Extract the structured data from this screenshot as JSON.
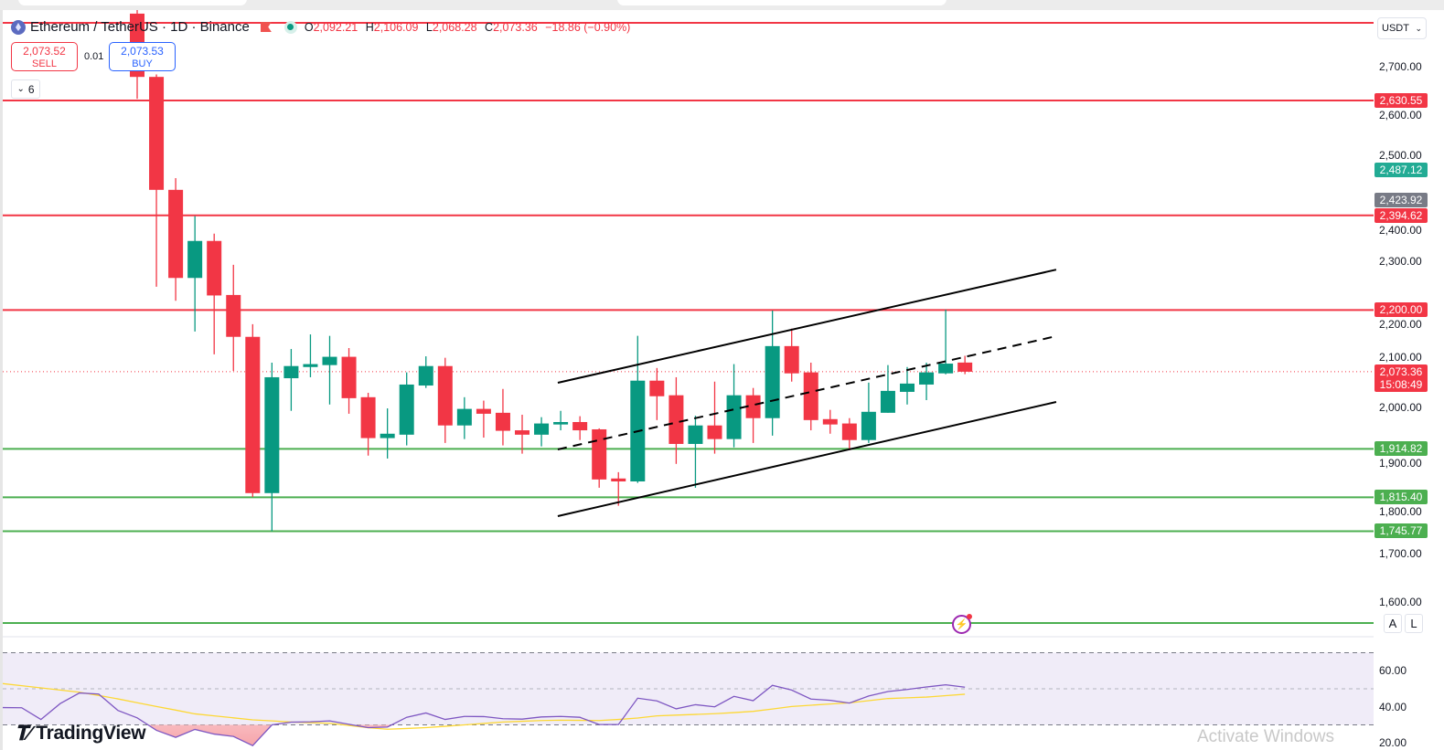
{
  "header": {
    "symbol": "Ethereum / TetherUS · 1D · Binance",
    "o_label": "O",
    "o": "2,092.21",
    "h_label": "H",
    "h": "2,106.09",
    "l_label": "L",
    "l": "2,068.28",
    "c_label": "C",
    "c": "2,073.36",
    "change": "−18.86 (−0.90%)"
  },
  "trade": {
    "sell_price": "2,073.52",
    "sell_label": "SELL",
    "spread": "0.01",
    "buy_price": "2,073.53",
    "buy_label": "BUY"
  },
  "indicators_toggle": {
    "count": "6"
  },
  "currency": "USDT",
  "scale_buttons": {
    "auto": "A",
    "log": "L"
  },
  "logo": "TradingView",
  "watermark": "Activate Windows",
  "colors": {
    "up": "#089981",
    "down": "#f23645",
    "support": "#4caf50",
    "resistance": "#f23645",
    "rsi": "#7e57c2",
    "rsi_ma": "#fdd835",
    "rsi_band": "#f0ecf8"
  },
  "chart_data": {
    "type": "candlestick",
    "interval": "1D",
    "candles": [
      {
        "o": 2809,
        "h": 2827,
        "l": 2634,
        "c": 2679
      },
      {
        "o": 2679,
        "h": 2684,
        "l": 2248,
        "c": 2447
      },
      {
        "o": 2447,
        "h": 2471,
        "l": 2219,
        "c": 2266
      },
      {
        "o": 2266,
        "h": 2393,
        "l": 2156,
        "c": 2342
      },
      {
        "o": 2342,
        "h": 2357,
        "l": 2109,
        "c": 2230
      },
      {
        "o": 2231,
        "h": 2293,
        "l": 2075,
        "c": 2145
      },
      {
        "o": 2145,
        "h": 2171,
        "l": 1816,
        "c": 1824
      },
      {
        "o": 1824,
        "h": 2092,
        "l": 1745.77,
        "c": 2062
      },
      {
        "o": 2060,
        "h": 2120,
        "l": 1993,
        "c": 2085
      },
      {
        "o": 2083,
        "h": 2150,
        "l": 2062,
        "c": 2089
      },
      {
        "o": 2087,
        "h": 2147,
        "l": 2006,
        "c": 2104
      },
      {
        "o": 2104,
        "h": 2122,
        "l": 1987,
        "c": 2019
      },
      {
        "o": 2021,
        "h": 2030,
        "l": 1901,
        "c": 1937
      },
      {
        "o": 1937,
        "h": 1998,
        "l": 1895,
        "c": 1946
      },
      {
        "o": 1944,
        "h": 2072,
        "l": 1922,
        "c": 2047
      },
      {
        "o": 2045,
        "h": 2105,
        "l": 2040,
        "c": 2085
      },
      {
        "o": 2085,
        "h": 2102,
        "l": 1927,
        "c": 1963
      },
      {
        "o": 1963,
        "h": 2021,
        "l": 1935,
        "c": 1997
      },
      {
        "o": 1997,
        "h": 2014,
        "l": 1938,
        "c": 1987
      },
      {
        "o": 1989,
        "h": 2038,
        "l": 1922,
        "c": 1952
      },
      {
        "o": 1953,
        "h": 1985,
        "l": 1905,
        "c": 1944
      },
      {
        "o": 1944,
        "h": 1980,
        "l": 1920,
        "c": 1967
      },
      {
        "o": 1965,
        "h": 1993,
        "l": 1953,
        "c": 1970
      },
      {
        "o": 1970,
        "h": 1982,
        "l": 1933,
        "c": 1953
      },
      {
        "o": 1955,
        "h": 1957,
        "l": 1835,
        "c": 1852
      },
      {
        "o": 1854,
        "h": 1867,
        "l": 1798,
        "c": 1848
      },
      {
        "o": 1848,
        "h": 2147,
        "l": 1845,
        "c": 2055
      },
      {
        "o": 2055,
        "h": 2081,
        "l": 1974,
        "c": 2023
      },
      {
        "o": 2025,
        "h": 2062,
        "l": 1884,
        "c": 1925
      },
      {
        "o": 1925,
        "h": 1983,
        "l": 1835,
        "c": 1963
      },
      {
        "o": 1963,
        "h": 2053,
        "l": 1905,
        "c": 1935
      },
      {
        "o": 1935,
        "h": 2089,
        "l": 1918,
        "c": 2025
      },
      {
        "o": 2025,
        "h": 2040,
        "l": 1927,
        "c": 1978
      },
      {
        "o": 1978,
        "h": 2199,
        "l": 1942,
        "c": 2126
      },
      {
        "o": 2126,
        "h": 2162,
        "l": 2053,
        "c": 2070
      },
      {
        "o": 2072,
        "h": 2092,
        "l": 1953,
        "c": 1974
      },
      {
        "o": 1976,
        "h": 1995,
        "l": 1946,
        "c": 1965
      },
      {
        "o": 1967,
        "h": 1978,
        "l": 1912,
        "c": 1933
      },
      {
        "o": 1933,
        "h": 2051,
        "l": 1927,
        "c": 1991
      },
      {
        "o": 1989,
        "h": 2087,
        "l": 1989,
        "c": 2034
      },
      {
        "o": 2032,
        "h": 2083,
        "l": 2006,
        "c": 2049
      },
      {
        "o": 2047,
        "h": 2092,
        "l": 2015,
        "c": 2072
      },
      {
        "o": 2070,
        "h": 2201,
        "l": 2068,
        "c": 2090
      },
      {
        "o": 2092.21,
        "h": 2106.09,
        "l": 2068.28,
        "c": 2073.36
      }
    ],
    "ylim": [
      1530,
      2810
    ],
    "price_ticks": [
      {
        "v": 2700,
        "label": "2,700.00"
      },
      {
        "v": 2600,
        "label": "2,600.00"
      },
      {
        "v": 2500,
        "label": "2,500.00"
      },
      {
        "v": 2400,
        "label": "2,400.00"
      },
      {
        "v": 2300,
        "label": "2,300.00"
      },
      {
        "v": 2200,
        "label": "2,200.00"
      },
      {
        "v": 2100,
        "label": "2,100.00"
      },
      {
        "v": 2000,
        "label": "2,000.00"
      },
      {
        "v": 1900,
        "label": "1,900.00"
      },
      {
        "v": 1800,
        "label": "1,800.00"
      },
      {
        "v": 1700,
        "label": "1,700.00"
      },
      {
        "v": 1600,
        "label": "1,600.00"
      }
    ],
    "horizontal_levels": [
      {
        "price": 2790,
        "kind": "resistance"
      },
      {
        "price": 2630.55,
        "kind": "resistance",
        "label": "2,630.55"
      },
      {
        "price": 2394.62,
        "kind": "resistance",
        "label": "2,394.62"
      },
      {
        "price": 2200,
        "kind": "resistance",
        "label": "2,200.00"
      },
      {
        "price": 1914.82,
        "kind": "support",
        "label": "1,914.82"
      },
      {
        "price": 1815.4,
        "kind": "support",
        "label": "1,815.40"
      },
      {
        "price": 1745.77,
        "kind": "support",
        "label": "1,745.77"
      },
      {
        "price": 1557,
        "kind": "support"
      }
    ],
    "extra_badges": [
      {
        "price": 2487.12,
        "label": "2,487.12",
        "color": "#22ab94"
      },
      {
        "price": 2423.92,
        "label": "2,423.92",
        "color": "#787b86"
      }
    ],
    "last_price": {
      "price": 2073.36,
      "label": "2,073.36",
      "countdown": "15:08:49"
    },
    "trendlines": [
      {
        "style": "solid",
        "from": {
          "bar": 21.85,
          "price": 2050.7
        },
        "to": {
          "bar": 47.74,
          "price": 2283
        }
      },
      {
        "style": "dashed",
        "from": {
          "bar": 21.85,
          "price": 1913.7
        },
        "to": {
          "bar": 47.74,
          "price": 2146.4
        }
      },
      {
        "style": "solid",
        "from": {
          "bar": 21.85,
          "price": 1776.7
        },
        "to": {
          "bar": 47.74,
          "price": 2011.3
        }
      }
    ],
    "rsi": {
      "first_bar": -7,
      "values": [
        39.6,
        39.5,
        33.0,
        41.8,
        47.7,
        47.1,
        38.0,
        33.9,
        27.0,
        23.1,
        27.5,
        24.9,
        23.6,
        18.5,
        30.0,
        31.5,
        31.7,
        32.2,
        30.3,
        28.5,
        28.8,
        34.2,
        36.6,
        33.0,
        34.7,
        34.6,
        33.4,
        33.2,
        34.4,
        34.7,
        34.2,
        30.2,
        30.2,
        44.8,
        43.3,
        38.9,
        41.2,
        40.0,
        45.8,
        43.4,
        51.9,
        49.3,
        44.3,
        43.6,
        42.1,
        46.0,
        48.5,
        49.6,
        51.0,
        52.2,
        50.9
      ],
      "ma": [
        52.9,
        51.7,
        50.5,
        49.3,
        48.1,
        46.3,
        44.4,
        42.3,
        40.2,
        38.2,
        36.1,
        35.0,
        33.9,
        32.8,
        32.2,
        31.6,
        31.2,
        30.9,
        29.7,
        28.4,
        27.6,
        28.0,
        28.5,
        29.2,
        30.0,
        30.8,
        31.6,
        32.0,
        32.4,
        32.6,
        32.5,
        32.4,
        33.0,
        33.8,
        35.0,
        35.4,
        35.8,
        36.2,
        36.8,
        37.5,
        38.8,
        40.2,
        40.9,
        41.6,
        42.2,
        43.4,
        44.6,
        45.0,
        45.4,
        46.2,
        47.0
      ],
      "levels": [
        70,
        50,
        30
      ],
      "ticks": [
        {
          "v": 60,
          "label": "60.00"
        },
        {
          "v": 40,
          "label": "40.00"
        },
        {
          "v": 20,
          "label": "20.00"
        }
      ]
    }
  }
}
